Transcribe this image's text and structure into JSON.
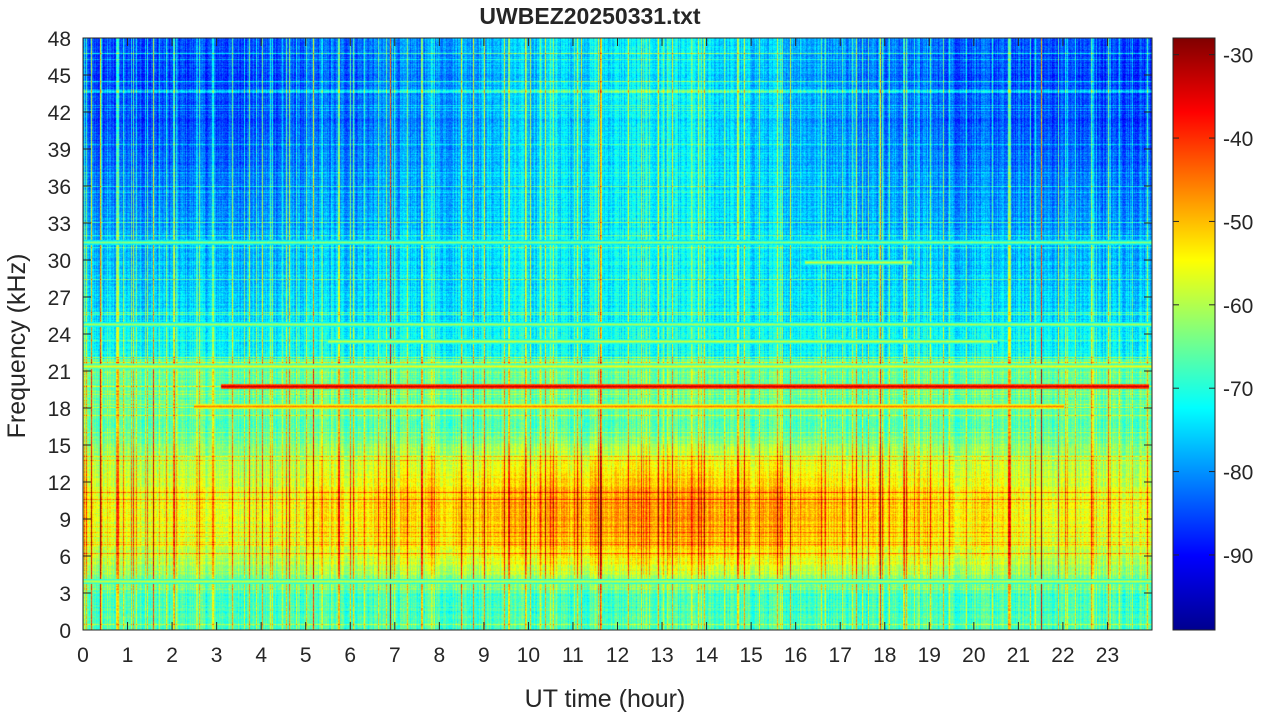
{
  "chart_data": {
    "type": "heatmap",
    "title": "UWBEZ20250331.txt",
    "xlabel": "UT time (hour)",
    "ylabel": "Frequency (kHz)",
    "xlim": [
      0,
      24
    ],
    "ylim": [
      0,
      48
    ],
    "x_ticks": [
      "0",
      "1",
      "2",
      "3",
      "4",
      "5",
      "6",
      "7",
      "8",
      "9",
      "10",
      "11",
      "12",
      "13",
      "14",
      "15",
      "16",
      "17",
      "18",
      "19",
      "20",
      "21",
      "22",
      "23"
    ],
    "y_ticks": [
      "0",
      "3",
      "6",
      "9",
      "12",
      "15",
      "18",
      "21",
      "24",
      "27",
      "30",
      "33",
      "36",
      "39",
      "42",
      "45",
      "48"
    ],
    "colorbar": {
      "colormap": "jet",
      "range": [
        -99,
        -28
      ],
      "ticks": [
        "-90",
        "-80",
        "-70",
        "-60",
        "-50",
        "-40",
        "-30"
      ]
    },
    "features": {
      "background_level": {
        "low_freq": -62,
        "mid_freq": -72,
        "high_freq_night": -86,
        "high_freq_day": -74
      },
      "noise_band_kHz": [
        3,
        16
      ],
      "noise_band_peak_hours": [
        7,
        19
      ],
      "noise_band_peak_level": -50,
      "transmitter_lines": [
        {
          "freq": 19.8,
          "level": -32,
          "start": 3.1,
          "end": 23.9
        },
        {
          "freq": 18.2,
          "level": -45,
          "start": 2.5,
          "end": 22.0
        },
        {
          "freq": 21.4,
          "level": -55,
          "start": 0.0,
          "end": 24.0
        },
        {
          "freq": 24.8,
          "level": -60,
          "start": 0.0,
          "end": 24.0
        },
        {
          "freq": 23.4,
          "level": -58,
          "start": 5.5,
          "end": 20.5
        },
        {
          "freq": 4.0,
          "level": -58,
          "start": 0.0,
          "end": 24.0
        },
        {
          "freq": 31.5,
          "level": -62,
          "start": 0.0,
          "end": 24.0
        },
        {
          "freq": 29.8,
          "level": -58,
          "start": 16.2,
          "end": 18.6
        }
      ]
    }
  }
}
